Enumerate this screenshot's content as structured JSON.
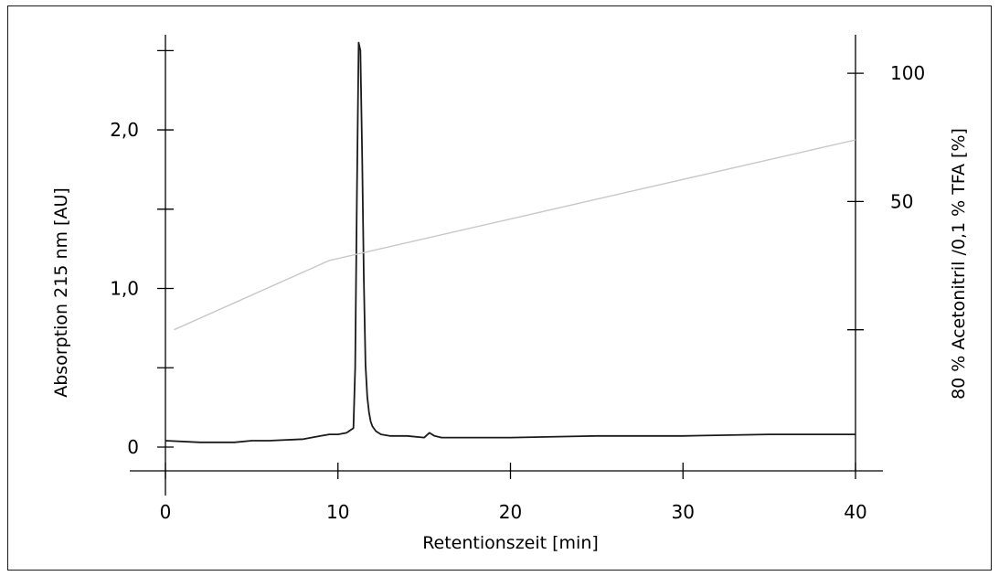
{
  "chart_data": {
    "type": "line",
    "title": "",
    "xlabel": "Retentionszeit [min]",
    "ylabel": "Absorption 215 nm [AU]",
    "y2label": "80 % Acetonitril /0,1 % TFA [%]",
    "xlim": [
      0,
      40
    ],
    "ylim": [
      -0.15,
      2.6
    ],
    "y2lim": [
      -55,
      115
    ],
    "grid": false,
    "legend": "none",
    "x_ticks": [
      {
        "value": 0,
        "label": "0"
      },
      {
        "value": 10,
        "label": "10"
      },
      {
        "value": 20,
        "label": "20"
      },
      {
        "value": 30,
        "label": "30"
      },
      {
        "value": 40,
        "label": "40"
      }
    ],
    "y_ticks": [
      {
        "value": 0,
        "label": "0"
      },
      {
        "value": 0.5,
        "label": ""
      },
      {
        "value": 1.0,
        "label": "1,0"
      },
      {
        "value": 1.5,
        "label": ""
      },
      {
        "value": 2.0,
        "label": "2,0"
      },
      {
        "value": 2.5,
        "label": ""
      }
    ],
    "y2_ticks": [
      {
        "value": 0,
        "label": ""
      },
      {
        "value": 50,
        "label": "50"
      },
      {
        "value": 100,
        "label": "100"
      }
    ],
    "series": [
      {
        "axis": "left",
        "color": "#1a1a1a",
        "x": [
          0,
          2,
          4,
          5,
          6,
          8,
          9,
          9.5,
          10,
          10.5,
          10.9,
          11.0,
          11.1,
          11.2,
          11.3,
          11.4,
          11.5,
          11.6,
          11.7,
          11.8,
          11.9,
          12.0,
          12.2,
          12.5,
          13,
          14,
          15,
          15.3,
          15.6,
          16,
          18,
          20,
          25,
          30,
          35,
          40
        ],
        "y": [
          0.04,
          0.03,
          0.03,
          0.04,
          0.04,
          0.05,
          0.07,
          0.08,
          0.08,
          0.09,
          0.12,
          0.5,
          1.6,
          2.55,
          2.5,
          1.85,
          1.05,
          0.52,
          0.32,
          0.22,
          0.16,
          0.13,
          0.1,
          0.08,
          0.07,
          0.07,
          0.06,
          0.09,
          0.07,
          0.06,
          0.06,
          0.06,
          0.07,
          0.07,
          0.08,
          0.08
        ]
      },
      {
        "axis": "right",
        "color": "#c8c8c8",
        "x": [
          0.5,
          9.5,
          40
        ],
        "y": [
          0,
          27,
          74
        ]
      }
    ]
  }
}
